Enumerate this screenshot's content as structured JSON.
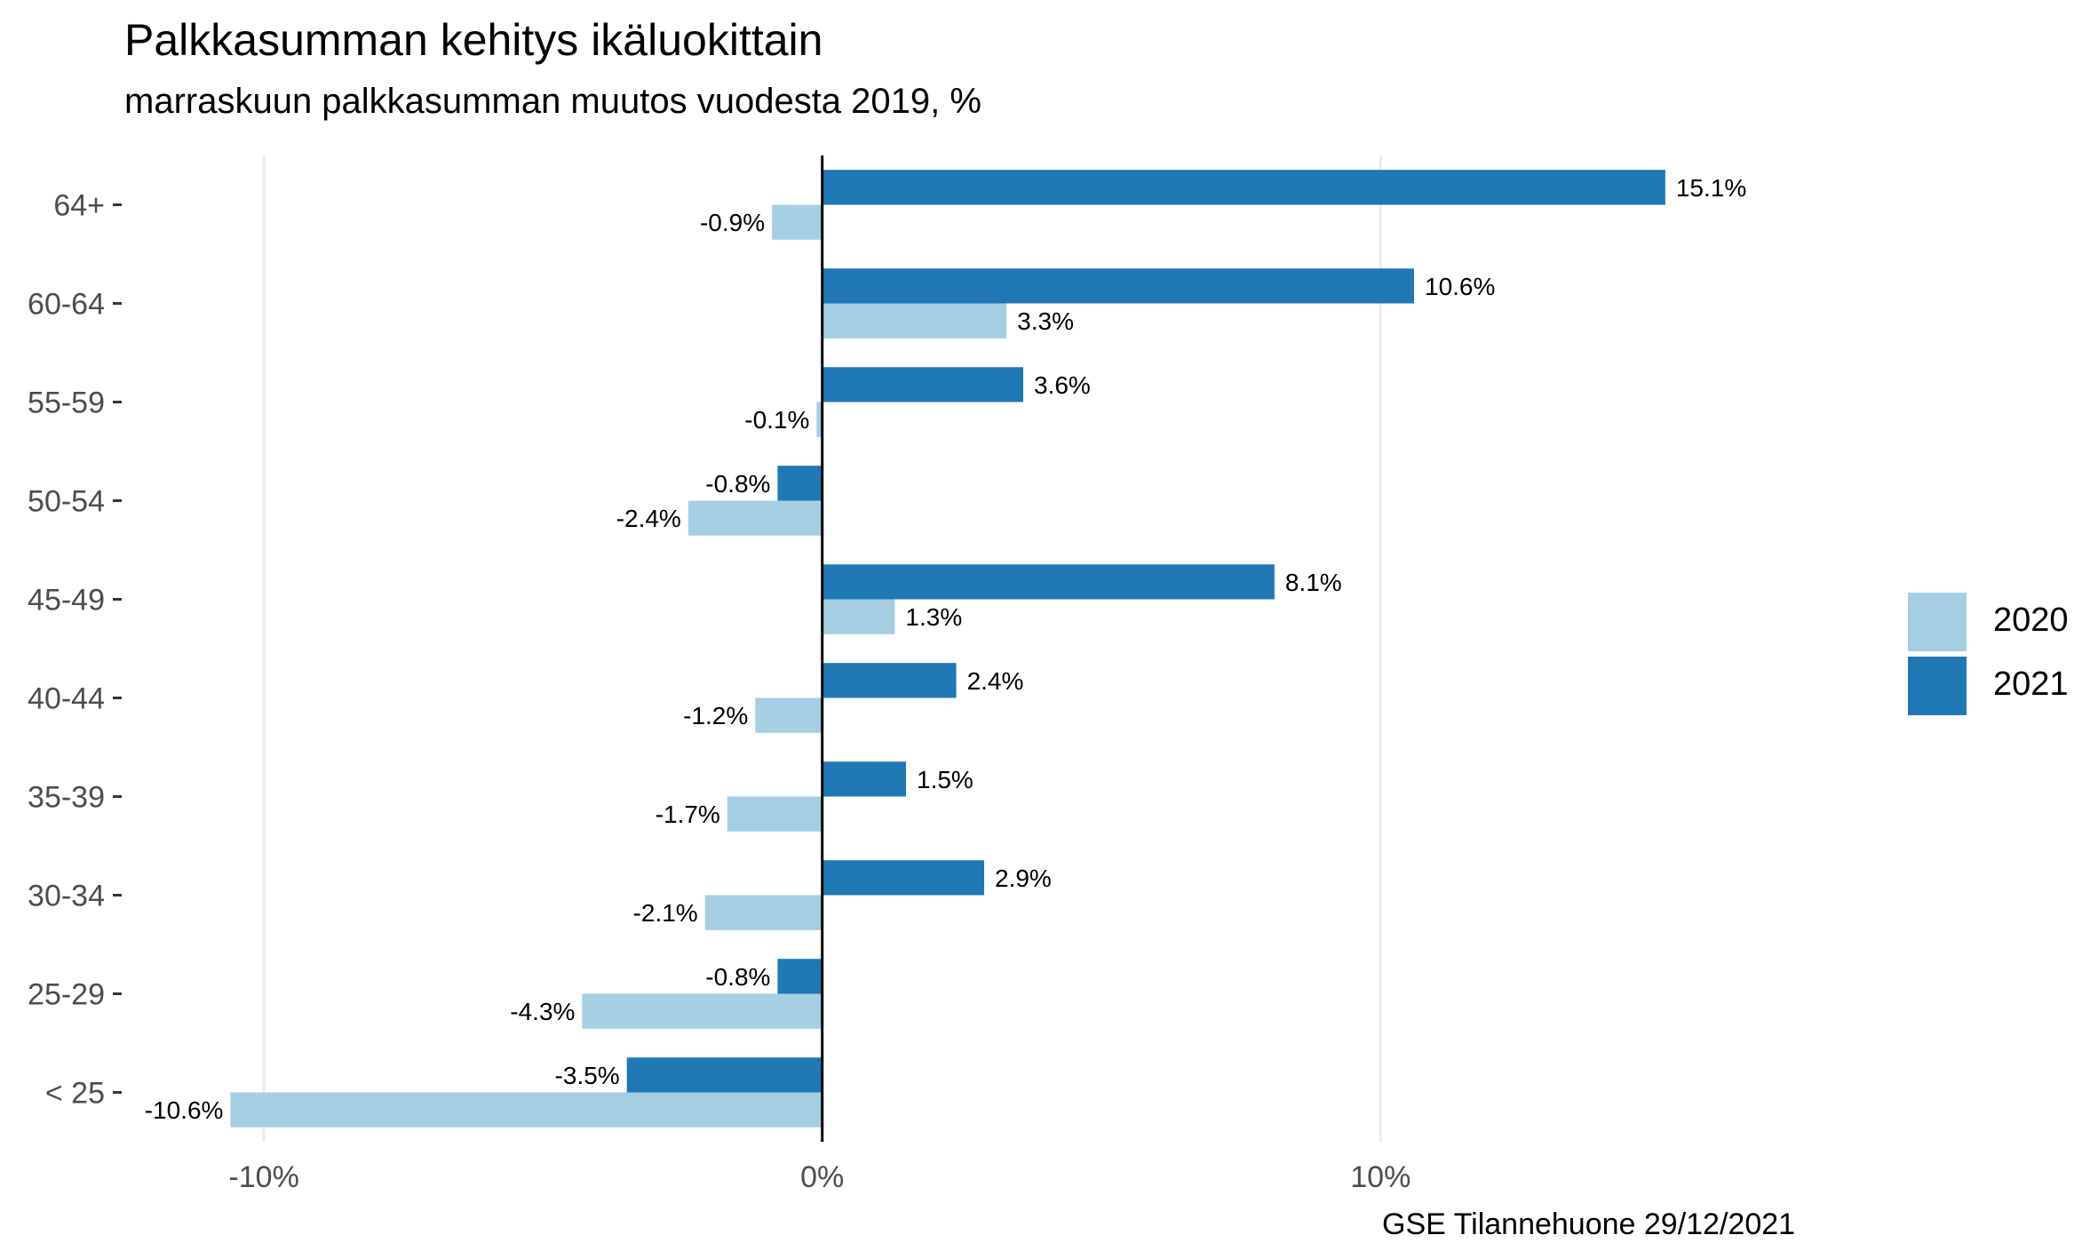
{
  "chart_data": {
    "type": "bar",
    "orientation": "horizontal",
    "title": "Palkkasumman kehitys ikäluokittain",
    "subtitle": "marraskuun palkkasumman muutos vuodesta 2019, %",
    "caption": "GSE Tilannehuone 29/12/2021",
    "categories": [
      "< 25",
      "25-29",
      "30-34",
      "35-39",
      "40-44",
      "45-49",
      "50-54",
      "55-59",
      "60-64",
      "64+"
    ],
    "series": [
      {
        "name": "2020",
        "color": "#a6cee3",
        "values": [
          -10.6,
          -4.3,
          -2.1,
          -1.7,
          -1.2,
          1.3,
          -2.4,
          -0.1,
          3.3,
          -0.9
        ],
        "labels": [
          "-10.6%",
          "-4.3%",
          "-2.1%",
          "-1.7%",
          "-1.2%",
          "1.3%",
          "-2.4%",
          "-0.1%",
          "3.3%",
          "-0.9%"
        ]
      },
      {
        "name": "2021",
        "color": "#1f78b4",
        "values": [
          -3.5,
          -0.8,
          2.9,
          1.5,
          2.4,
          8.1,
          -0.8,
          3.6,
          10.6,
          15.1
        ],
        "labels": [
          "-3.5%",
          "-0.8%",
          "2.9%",
          "1.5%",
          "2.4%",
          "8.1%",
          "-0.8%",
          "3.6%",
          "10.6%",
          "15.1%"
        ]
      }
    ],
    "x_ticks": [
      -10,
      0,
      10
    ],
    "x_tick_labels": [
      "-10%",
      "0%",
      "10%"
    ],
    "xlim": [
      -12.5,
      19
    ],
    "grid": "vertical major",
    "legend_position": "right"
  }
}
